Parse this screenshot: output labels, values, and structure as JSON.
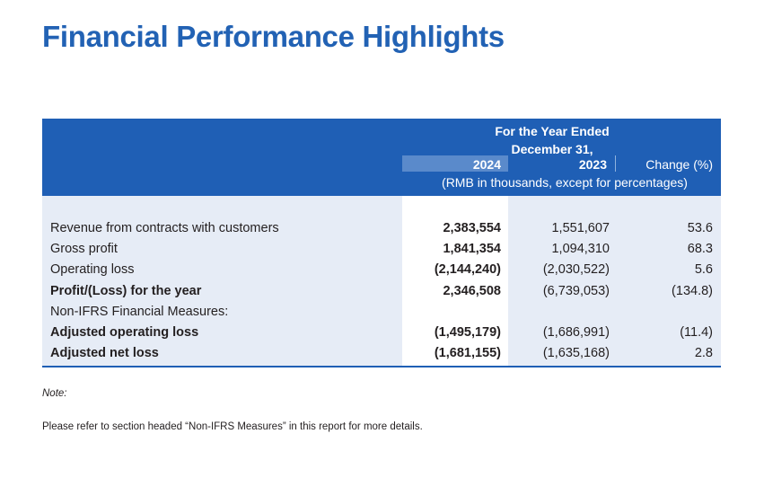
{
  "title": "Financial Performance Highlights",
  "table": {
    "header_line1": "For the Year Ended",
    "header_line2": "December 31,",
    "col_2024": "2024",
    "col_2023": "2023",
    "col_change": "Change (%)",
    "units": "(RMB in thousands, except for percentages)",
    "rows": [
      {
        "label": "Revenue from contracts with customers",
        "v2024": "2,383,554",
        "v2023": "1,551,607",
        "change": "53.6",
        "bold": false
      },
      {
        "label": "Gross profit",
        "v2024": "1,841,354",
        "v2023": "1,094,310",
        "change": "68.3",
        "bold": false
      },
      {
        "label": "Operating loss",
        "v2024": "(2,144,240)",
        "v2023": "(2,030,522)",
        "change": "5.6",
        "bold": false
      },
      {
        "label": "Profit/(Loss) for the year",
        "v2024": "2,346,508",
        "v2023": "(6,739,053)",
        "change": "(134.8)",
        "bold": true
      },
      {
        "label": "Non-IFRS Financial Measures:",
        "v2024": "",
        "v2023": "",
        "change": "",
        "bold": false
      },
      {
        "label": "Adjusted operating loss",
        "v2024": "(1,495,179)",
        "v2023": "(1,686,991)",
        "change": "(11.4)",
        "bold": true
      },
      {
        "label": "Adjusted net loss",
        "v2024": "(1,681,155)",
        "v2023": "(1,635,168)",
        "change": "2.8",
        "bold": true
      }
    ]
  },
  "note_label": "Note:",
  "note_text": "Please refer to section headed “Non-IFRS Measures” in this report for more details."
}
